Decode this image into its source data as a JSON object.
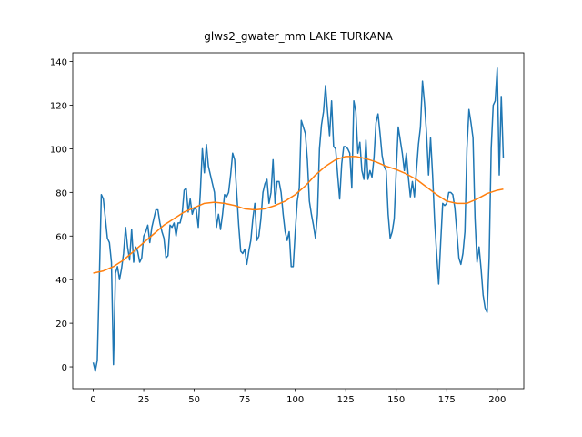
{
  "chart_data": {
    "type": "line",
    "title": "glws2_gwater_mm LAKE TURKANA",
    "xlim": [
      -10.15,
      213.15
    ],
    "ylim": [
      -10,
      144
    ],
    "xticks": [
      0,
      25,
      50,
      75,
      100,
      125,
      150,
      175,
      200
    ],
    "yticks": [
      0,
      20,
      40,
      60,
      80,
      100,
      120,
      140
    ],
    "series": [
      {
        "color": "#1f77b4",
        "x": [
          0,
          1,
          2,
          3,
          4,
          5,
          6,
          7,
          8,
          9,
          10,
          11,
          12,
          13,
          14,
          15,
          16,
          17,
          18,
          19,
          20,
          21,
          22,
          23,
          24,
          25,
          26,
          27,
          28,
          29,
          30,
          31,
          32,
          33,
          34,
          35,
          36,
          37,
          38,
          39,
          40,
          41,
          42,
          43,
          44,
          45,
          46,
          47,
          48,
          49,
          50,
          51,
          52,
          53,
          54,
          55,
          56,
          57,
          58,
          59,
          60,
          61,
          62,
          63,
          64,
          65,
          66,
          67,
          68,
          69,
          70,
          71,
          72,
          73,
          74,
          75,
          76,
          77,
          78,
          79,
          80,
          81,
          82,
          83,
          84,
          85,
          86,
          87,
          88,
          89,
          90,
          91,
          92,
          93,
          94,
          95,
          96,
          97,
          98,
          99,
          100,
          101,
          102,
          103,
          104,
          105,
          106,
          107,
          108,
          109,
          110,
          111,
          112,
          113,
          114,
          115,
          116,
          117,
          118,
          119,
          120,
          121,
          122,
          123,
          124,
          125,
          126,
          127,
          128,
          129,
          130,
          131,
          132,
          133,
          134,
          135,
          136,
          137,
          138,
          139,
          140,
          141,
          142,
          143,
          144,
          145,
          146,
          147,
          148,
          149,
          150,
          151,
          152,
          153,
          154,
          155,
          156,
          157,
          158,
          159,
          160,
          161,
          162,
          163,
          164,
          165,
          166,
          167,
          168,
          169,
          170,
          171,
          172,
          173,
          174,
          175,
          176,
          177,
          178,
          179,
          180,
          181,
          182,
          183,
          184,
          185,
          186,
          187,
          188,
          189,
          190,
          191,
          192,
          193,
          194,
          195,
          196,
          197,
          198,
          199,
          200,
          201,
          202,
          203
        ],
        "values": [
          2,
          -2,
          3,
          40,
          79,
          77,
          68,
          59,
          57,
          48,
          1,
          43,
          46,
          40,
          45,
          52,
          64,
          55,
          49,
          63,
          48,
          55,
          53,
          48,
          50,
          60,
          62,
          65,
          57,
          64,
          68,
          72,
          72,
          66,
          62,
          59,
          50,
          51,
          65,
          64,
          66,
          60,
          66,
          66,
          70,
          81,
          82,
          71,
          77,
          70,
          73,
          72,
          64,
          80,
          100,
          89,
          102,
          92,
          88,
          84,
          80,
          64,
          70,
          63,
          70,
          79,
          78,
          80,
          88,
          98,
          95,
          80,
          65,
          53,
          52,
          54,
          47,
          53,
          58,
          68,
          75,
          58,
          60,
          68,
          80,
          84,
          86,
          75,
          80,
          95,
          75,
          85,
          85,
          80,
          70,
          62,
          58,
          62,
          46,
          46,
          62,
          76,
          82,
          113,
          110,
          107,
          95,
          76,
          70,
          65,
          59,
          70,
          100,
          111,
          117,
          129,
          117,
          106,
          122,
          101,
          100,
          88,
          77,
          93,
          101,
          101,
          100,
          98,
          82,
          122,
          117,
          98,
          103,
          90,
          86,
          104,
          86,
          90,
          87,
          96,
          112,
          116,
          107,
          97,
          92,
          90,
          70,
          59,
          62,
          68,
          90,
          110,
          104,
          98,
          90,
          98,
          87,
          78,
          85,
          78,
          90,
          102,
          110,
          131,
          121,
          107,
          88,
          105,
          88,
          67,
          52,
          38,
          57,
          75,
          74,
          75,
          80,
          80,
          79,
          73,
          62,
          50,
          47,
          52,
          62,
          100,
          118,
          112,
          105,
          68,
          48,
          55,
          45,
          33,
          27,
          25,
          50,
          100,
          120,
          122,
          137,
          88,
          124,
          96
        ]
      },
      {
        "color": "#ff7f0e",
        "x": [
          0,
          5,
          10,
          15,
          20,
          25,
          30,
          35,
          40,
          45,
          50,
          55,
          60,
          65,
          70,
          75,
          80,
          85,
          90,
          95,
          100,
          105,
          110,
          115,
          120,
          125,
          130,
          135,
          140,
          145,
          150,
          155,
          160,
          165,
          170,
          175,
          180,
          185,
          190,
          195,
          200,
          203
        ],
        "values": [
          43,
          44,
          46,
          49,
          53,
          57,
          61,
          65,
          68,
          71,
          73,
          75,
          75.5,
          75,
          74,
          72.5,
          72,
          72.5,
          74,
          76,
          79,
          83,
          88,
          92,
          95,
          96.5,
          96.5,
          95.5,
          94,
          92,
          90.5,
          88.5,
          86,
          82.5,
          79,
          76,
          75,
          75,
          77,
          79.5,
          81,
          81.5
        ]
      }
    ]
  }
}
